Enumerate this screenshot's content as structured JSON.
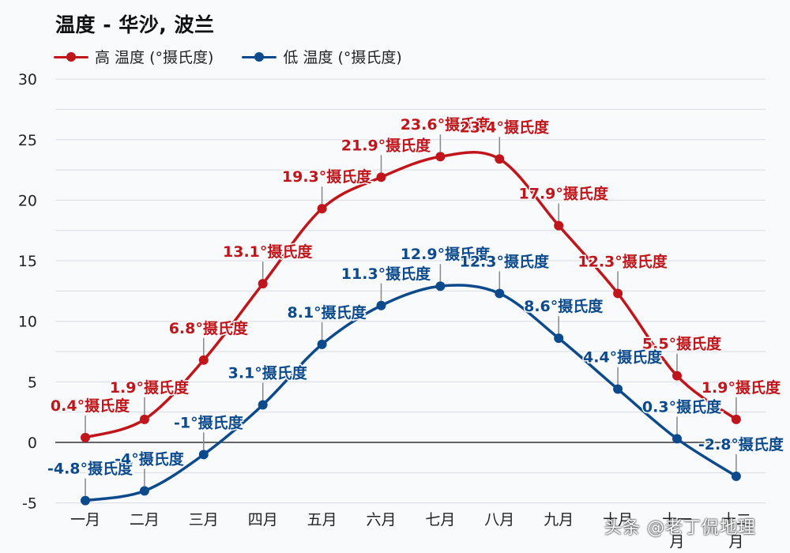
{
  "chart": {
    "title": "温度 - 华沙, 波兰",
    "watermark": "头条 @老丁侃地理"
  },
  "legend": {
    "high": "高 温度 (°摄氏度)",
    "low": "低 温度 (°摄氏度)"
  },
  "colors": {
    "high": "#c0161b",
    "low": "#0c4a8c",
    "grid": "#d8dde3",
    "zero": "#333333",
    "leader": "#888888",
    "axis_text": "#222222"
  },
  "chart_data": {
    "type": "line",
    "title": "温度 - 华沙, 波兰",
    "xlabel": "",
    "ylabel": "",
    "categories": [
      "一月",
      "二月",
      "三月",
      "四月",
      "五月",
      "六月",
      "七月",
      "八月",
      "九月",
      "十月",
      "十一月",
      "十二月"
    ],
    "series": [
      {
        "name": "高 温度 (°摄氏度)",
        "values": [
          0.4,
          1.9,
          6.8,
          13.1,
          19.3,
          21.9,
          23.6,
          23.4,
          17.9,
          12.3,
          5.5,
          1.9
        ],
        "labels": [
          "0.4°摄氏度",
          "1.9°摄氏度",
          "6.8°摄氏度",
          "13.1°摄氏度",
          "19.3°摄氏度",
          "21.9°摄氏度",
          "23.6°摄氏度",
          "23.4°摄氏度",
          "17.9°摄氏度",
          "12.3°摄氏度",
          "5.5°摄氏度",
          "1.9°摄氏度"
        ]
      },
      {
        "name": "低 温度 (°摄氏度)",
        "values": [
          -4.8,
          -4,
          -1,
          3.1,
          8.1,
          11.3,
          12.9,
          12.3,
          8.6,
          4.4,
          0.3,
          -2.8
        ],
        "labels": [
          "-4.8°摄氏度",
          "-4°摄氏度",
          "-1°摄氏度",
          "3.1°摄氏度",
          "8.1°摄氏度",
          "11.3°摄氏度",
          "12.9°摄氏度",
          "12.3°摄氏度",
          "8.6°摄氏度",
          "4.4°摄氏度",
          "0.3°摄氏度",
          "-2.8°摄氏度"
        ]
      }
    ],
    "yticks": [
      30,
      25,
      20,
      15,
      10,
      5,
      0,
      -5
    ],
    "ylim": [
      -5,
      30
    ],
    "grid": true,
    "minor_grid_step": 2.5,
    "legend_position": "top-left"
  }
}
